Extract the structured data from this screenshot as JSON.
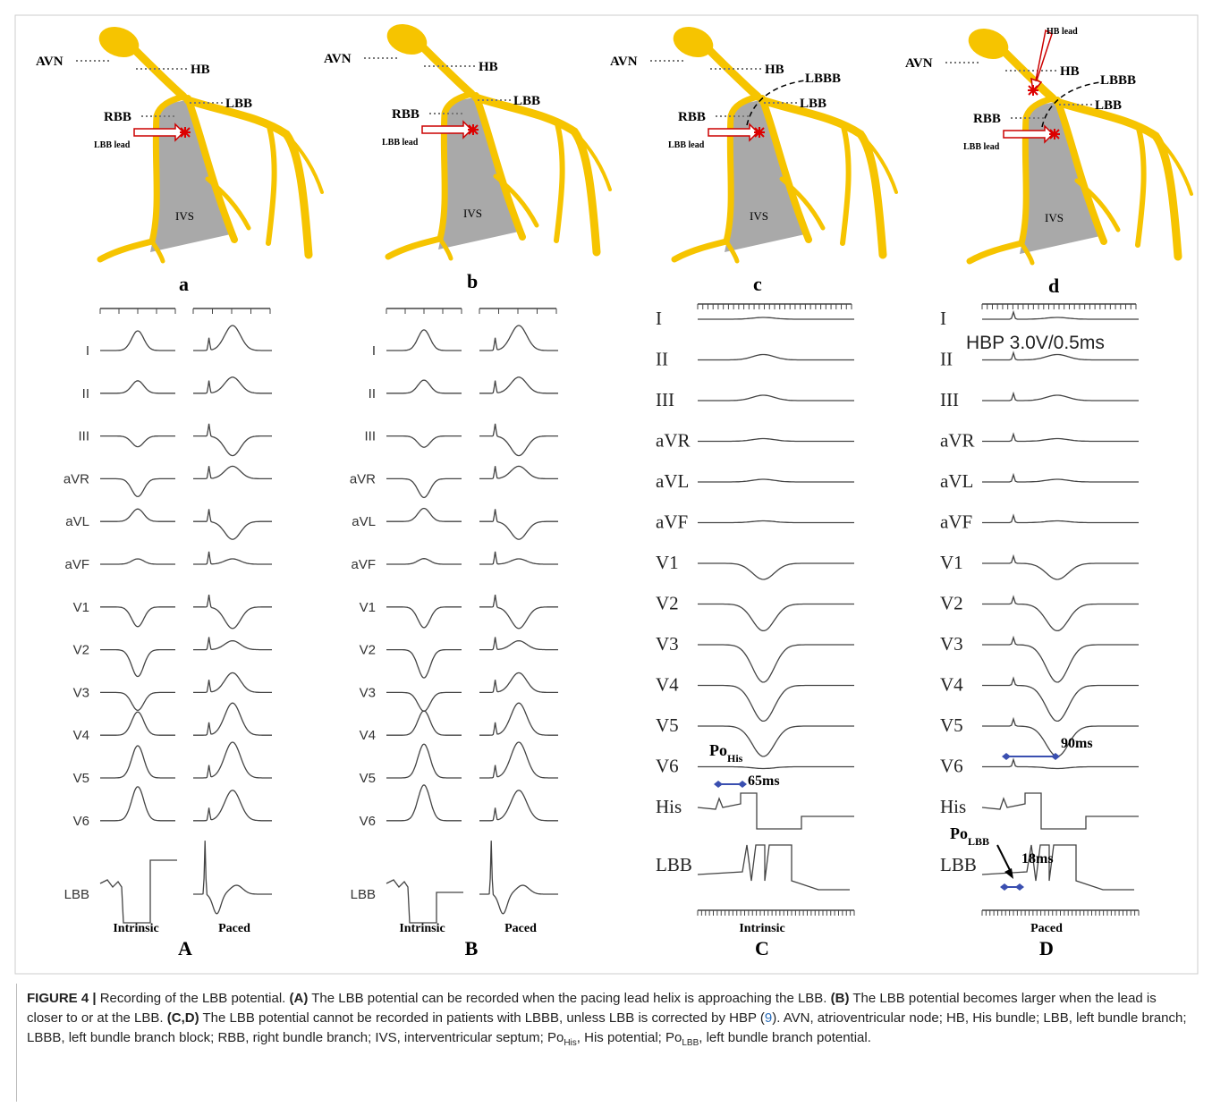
{
  "diagrams": [
    {
      "avn": "AVN",
      "hb": "HB",
      "lbb": "LBB",
      "rbb": "RBB",
      "lead": "LBB lead",
      "ivs": "IVS",
      "letter": "a"
    },
    {
      "avn": "AVN",
      "hb": "HB",
      "lbb": "LBB",
      "rbb": "RBB",
      "lead": "LBB lead",
      "ivs": "IVS",
      "letter": "b"
    },
    {
      "avn": "AVN",
      "hb": "HB",
      "lbb": "LBB",
      "rbb": "RBB",
      "lead": "LBB lead",
      "ivs": "IVS",
      "lbbb": "LBBB",
      "letter": "c"
    },
    {
      "avn": "AVN",
      "hb": "HB",
      "lbb": "LBB",
      "rbb": "RBB",
      "lead": "LBB lead",
      "ivs": "IVS",
      "lbbb": "LBBB",
      "hb_lead": "HB lead",
      "letter": "d"
    }
  ],
  "recordings": [
    {
      "leads": [
        "I",
        "II",
        "III",
        "aVR",
        "aVL",
        "aVF",
        "V1",
        "V2",
        "V3",
        "V4",
        "V5",
        "V6",
        "LBB"
      ],
      "conditions": [
        "Intrinsic",
        "Paced"
      ],
      "letter": "A"
    },
    {
      "leads": [
        "I",
        "II",
        "III",
        "aVR",
        "aVL",
        "aVF",
        "V1",
        "V2",
        "V3",
        "V4",
        "V5",
        "V6",
        "LBB"
      ],
      "conditions": [
        "Intrinsic",
        "Paced"
      ],
      "letter": "B"
    },
    {
      "leads": [
        "I",
        "II",
        "III",
        "aVR",
        "aVL",
        "aVF",
        "V1",
        "V2",
        "V3",
        "V4",
        "V5",
        "V6",
        "His",
        "LBB"
      ],
      "conditions": [
        "Intrinsic"
      ],
      "letter": "C",
      "annotations": {
        "po": "Po",
        "po_sub": "His",
        "interval": "65ms"
      }
    },
    {
      "leads": [
        "I",
        "II",
        "III",
        "aVR",
        "aVL",
        "aVF",
        "V1",
        "V2",
        "V3",
        "V4",
        "V5",
        "V6",
        "His",
        "LBB"
      ],
      "conditions": [
        "Paced"
      ],
      "letter": "D",
      "annotations": {
        "setting": "HBP 3.0V/0.5ms",
        "interval": "90ms",
        "po": "Po",
        "po_sub": "LBB",
        "interval2": "18ms"
      }
    }
  ],
  "caption": [
    {
      "text": "FIGURE 4 |",
      "style": "bold"
    },
    {
      "text": " Recording of the LBB potential. "
    },
    {
      "text": "(A)",
      "style": "bold"
    },
    {
      "text": " The LBB potential can be recorded when the pacing lead helix is approaching the LBB. "
    },
    {
      "text": "(B)",
      "style": "bold"
    },
    {
      "text": " The LBB potential becomes larger when the lead is closer to or at the LBB. "
    },
    {
      "text": "(C,D)",
      "style": "bold"
    },
    {
      "text": " The LBB potential cannot be recorded in patients with LBBB, unless LBB is corrected by HBP ("
    },
    {
      "text": "9",
      "style": "link"
    },
    {
      "text": "). AVN, atrioventricular node; HB, His bundle; LBB, left bundle branch; LBBB, left bundle branch block; RBB, right bundle branch; IVS, interventricular septum; Po"
    },
    {
      "text": "His",
      "style": "sub"
    },
    {
      "text": ", His potential; Po"
    },
    {
      "text": "LBB",
      "style": "sub"
    },
    {
      "text": ", left bundle branch potential."
    }
  ]
}
